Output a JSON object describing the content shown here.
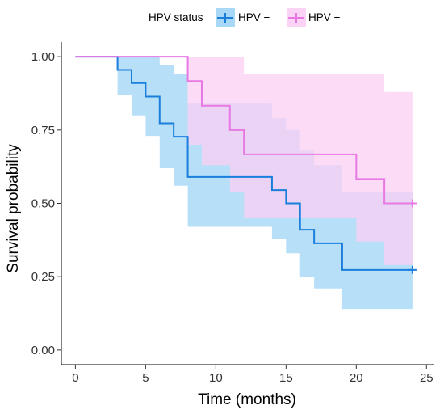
{
  "chart_data": {
    "type": "line",
    "subtype": "kaplan-meier step curve with confidence bands",
    "xlabel": "Time (months)",
    "ylabel": "Survival probability",
    "xlim": [
      -1,
      25.5
    ],
    "ylim": [
      -0.05,
      1.05
    ],
    "x_ticks": [
      0,
      5,
      10,
      15,
      20,
      25
    ],
    "y_ticks": [
      0.0,
      0.25,
      0.5,
      0.75,
      1.0
    ],
    "x_tick_labels": [
      "0",
      "5",
      "10",
      "15",
      "20",
      "25"
    ],
    "y_tick_labels": [
      "0.00",
      "0.25",
      "0.50",
      "0.75",
      "1.00"
    ],
    "grid": false,
    "legend": {
      "title": "HPV status",
      "position": "top",
      "entries": [
        "HPV −",
        "HPV +"
      ]
    },
    "series": [
      {
        "name": "HPV −",
        "color": "#1a7fdc",
        "fill": "#9fd4f5",
        "steps": [
          {
            "x": 0,
            "y": 1.0,
            "lower": 1.0,
            "upper": 1.0
          },
          {
            "x": 3,
            "y": 0.955,
            "lower": 0.87,
            "upper": 1.0
          },
          {
            "x": 4,
            "y": 0.91,
            "lower": 0.8,
            "upper": 1.0
          },
          {
            "x": 5,
            "y": 0.864,
            "lower": 0.73,
            "upper": 1.0
          },
          {
            "x": 6,
            "y": 0.773,
            "lower": 0.62,
            "upper": 0.97
          },
          {
            "x": 7,
            "y": 0.727,
            "lower": 0.56,
            "upper": 0.94
          },
          {
            "x": 8,
            "y": 0.59,
            "lower": 0.42,
            "upper": 0.84
          },
          {
            "x": 14,
            "y": 0.545,
            "lower": 0.38,
            "upper": 0.79
          },
          {
            "x": 15,
            "y": 0.5,
            "lower": 0.33,
            "upper": 0.75
          },
          {
            "x": 16,
            "y": 0.41,
            "lower": 0.25,
            "upper": 0.68
          },
          {
            "x": 17,
            "y": 0.364,
            "lower": 0.21,
            "upper": 0.63
          },
          {
            "x": 19,
            "y": 0.273,
            "lower": 0.14,
            "upper": 0.54
          },
          {
            "x": 24,
            "y": 0.273,
            "lower": 0.14,
            "upper": 0.54
          }
        ],
        "censored_x": [
          24
        ]
      },
      {
        "name": "HPV +",
        "color": "#e878e4",
        "fill": "#fbcff4",
        "steps": [
          {
            "x": 0,
            "y": 1.0,
            "lower": 1.0,
            "upper": 1.0
          },
          {
            "x": 8,
            "y": 0.917,
            "lower": 0.7,
            "upper": 1.0
          },
          {
            "x": 9,
            "y": 0.833,
            "lower": 0.63,
            "upper": 1.0
          },
          {
            "x": 11,
            "y": 0.75,
            "lower": 0.54,
            "upper": 1.0
          },
          {
            "x": 12,
            "y": 0.667,
            "lower": 0.45,
            "upper": 0.94
          },
          {
            "x": 20,
            "y": 0.583,
            "lower": 0.37,
            "upper": 0.94
          },
          {
            "x": 22,
            "y": 0.5,
            "lower": 0.29,
            "upper": 0.88
          },
          {
            "x": 24,
            "y": 0.5,
            "lower": 0.29,
            "upper": 0.88
          }
        ],
        "censored_x": [
          24
        ]
      }
    ]
  }
}
